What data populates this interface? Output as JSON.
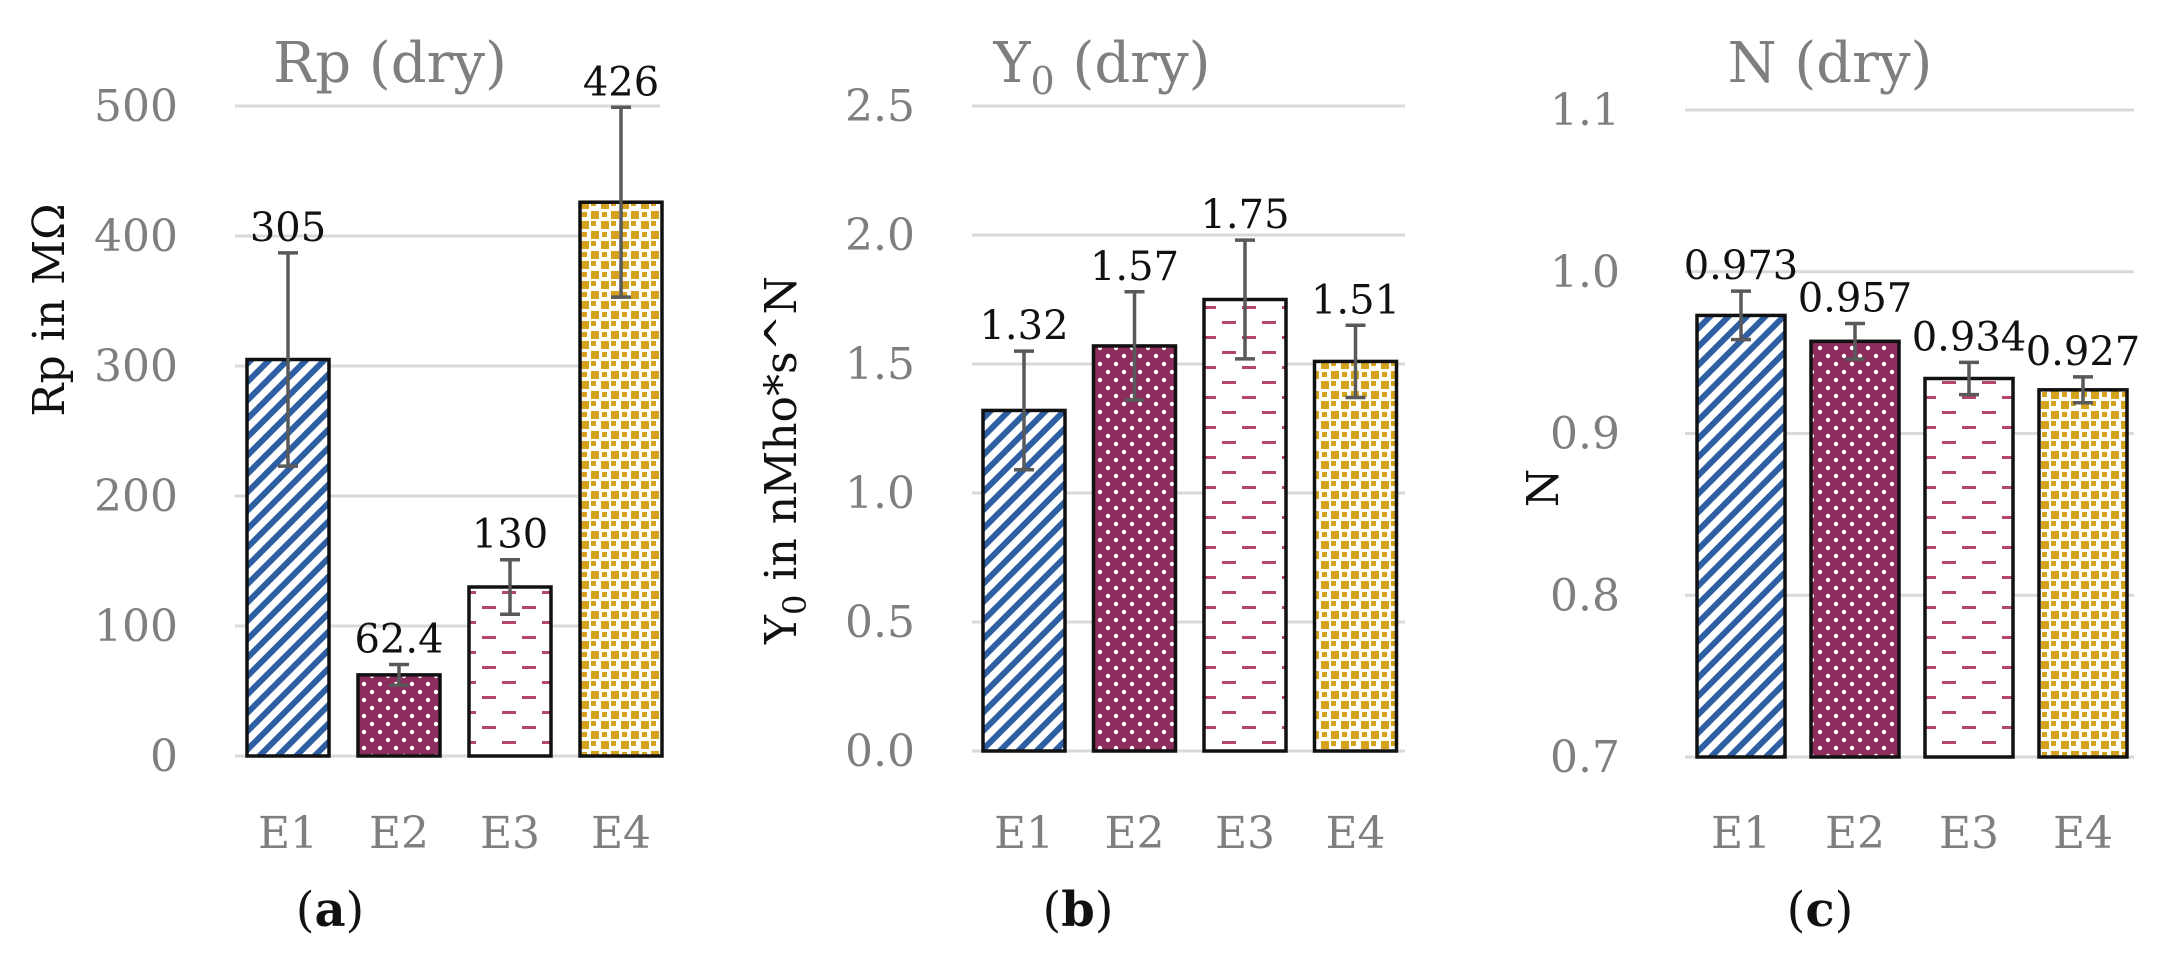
{
  "chart_data": [
    {
      "type": "bar",
      "title": "Rp (dry)",
      "ylabel": "Rp in MΩ",
      "categories": [
        "E1",
        "E2",
        "E3",
        "E4"
      ],
      "values": [
        305,
        62.4,
        130,
        426
      ],
      "value_labels": [
        "305",
        "62.4",
        "130",
        "426"
      ],
      "error": [
        82,
        8,
        21,
        73
      ],
      "ylim": [
        0,
        500
      ],
      "yticks": [
        0,
        100,
        200,
        300,
        400,
        500
      ],
      "ytick_labels": [
        "0",
        "100",
        "200",
        "300",
        "400",
        "500"
      ],
      "panel_open": "(",
      "panel_letter": "a",
      "panel_close": ")"
    },
    {
      "type": "bar",
      "title_main": "Y",
      "title_sub": "0",
      "title_rest": " (dry)",
      "ylabel_main": "Y",
      "ylabel_sub": "0",
      "ylabel_rest": " in nMho*s^N",
      "categories": [
        "E1",
        "E2",
        "E3",
        "E4"
      ],
      "values": [
        1.32,
        1.57,
        1.75,
        1.51
      ],
      "value_labels": [
        "1.32",
        "1.57",
        "1.75",
        "1.51"
      ],
      "error": [
        0.23,
        0.21,
        0.23,
        0.14
      ],
      "ylim": [
        0,
        2.5
      ],
      "yticks": [
        0,
        0.5,
        1.0,
        1.5,
        2.0,
        2.5
      ],
      "ytick_labels": [
        "0.0",
        "0.5",
        "1.0",
        "1.5",
        "2.0",
        "2.5"
      ],
      "panel_open": "(",
      "panel_letter": "b",
      "panel_close": ")"
    },
    {
      "type": "bar",
      "title": "N (dry)",
      "ylabel": "N",
      "categories": [
        "E1",
        "E2",
        "E3",
        "E4"
      ],
      "values": [
        0.973,
        0.957,
        0.934,
        0.927
      ],
      "value_labels": [
        "0.973",
        "0.957",
        "0.934",
        "0.927"
      ],
      "error": [
        0.015,
        0.011,
        0.01,
        0.008
      ],
      "ylim": [
        0.7,
        1.1
      ],
      "yticks": [
        0.7,
        0.8,
        0.9,
        1.0,
        1.1
      ],
      "ytick_labels": [
        "0.7",
        "0.8",
        "0.9",
        "1.0",
        "1.1"
      ],
      "panel_open": "(",
      "panel_letter": "c",
      "panel_close": ")"
    }
  ],
  "colors": {
    "E1": "#2e5fa3",
    "E2": "#8c2d5e",
    "E3": "#b3456f",
    "E4": "#d4a21c",
    "grid": "#d9d9d9",
    "text_gray": "#7f7f7f",
    "error_bar": "#595959"
  }
}
